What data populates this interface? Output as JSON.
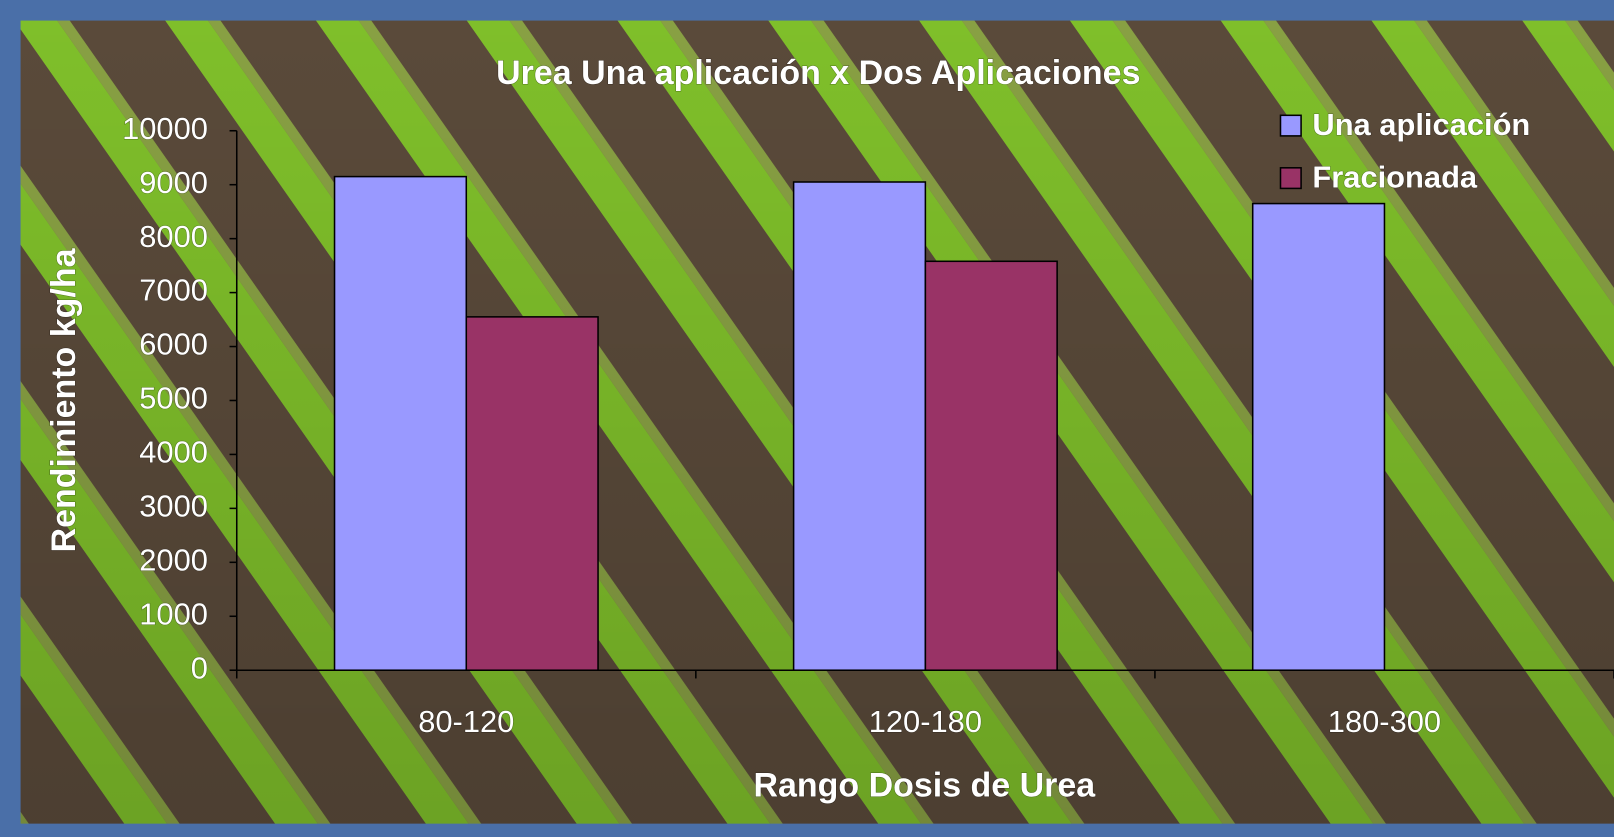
{
  "chart_data": {
    "type": "bar",
    "title": "Urea Una aplicación x Dos Aplicaciones",
    "x_label": "Rango Dosis de Urea",
    "y_label": "Rendimiento kg/ha",
    "categories": [
      "80-120",
      "120-180",
      "180-300"
    ],
    "series": [
      {
        "name": "Una aplicación",
        "color": "#9999ff",
        "values": [
          9150,
          9050,
          8650
        ]
      },
      {
        "name": "Fracionada",
        "color": "#993366",
        "values": [
          6550,
          7580,
          null
        ]
      }
    ],
    "ylim": [
      0,
      10000
    ],
    "yticks": [
      0,
      1000,
      2000,
      3000,
      4000,
      5000,
      6000,
      7000,
      8000,
      9000,
      10000
    ],
    "legend": "top-right"
  }
}
